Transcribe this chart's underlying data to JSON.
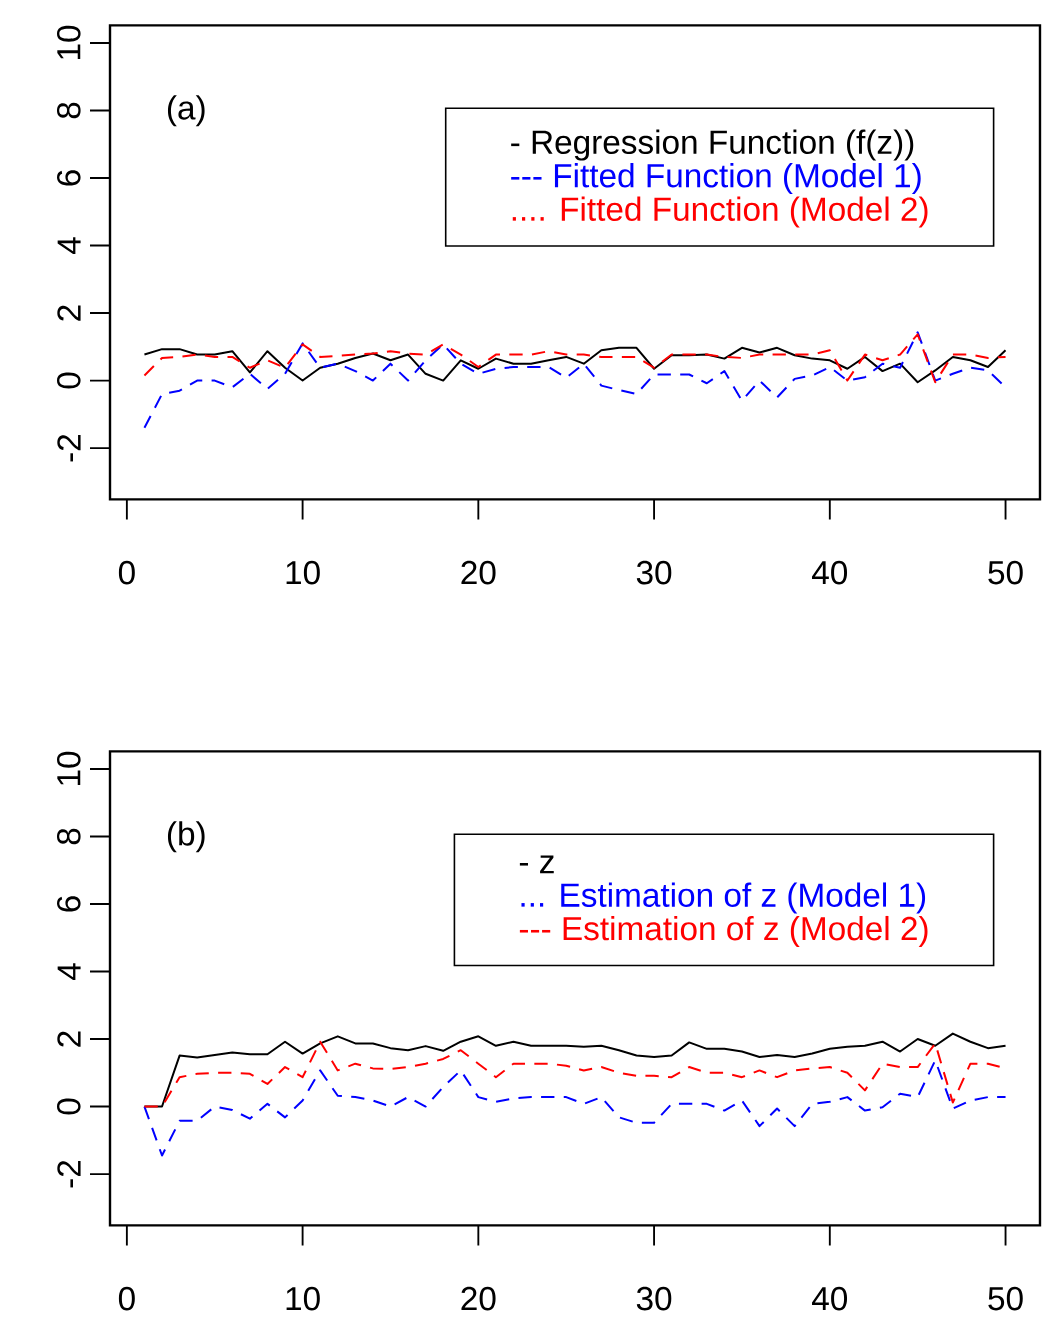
{
  "chart_data": [
    {
      "type": "line",
      "x": [
        1,
        2,
        3,
        4,
        5,
        6,
        7,
        8,
        9,
        10,
        11,
        12,
        13,
        14,
        15,
        16,
        17,
        18,
        19,
        20,
        21,
        22,
        23,
        24,
        25,
        26,
        27,
        28,
        29,
        30,
        31,
        32,
        33,
        34,
        35,
        36,
        37,
        38,
        39,
        40,
        41,
        42,
        43,
        44,
        45,
        46,
        47,
        48,
        49,
        50
      ],
      "xlim": [
        -0.96,
        51.96
      ],
      "ylim": [
        -3.52,
        10.52
      ],
      "xticks": [
        0,
        10,
        20,
        30,
        40,
        50
      ],
      "yticks": [
        -2,
        0,
        2,
        4,
        6,
        8,
        10
      ],
      "legend": "top right",
      "annotations": [
        "(a)"
      ],
      "series": [
        {
          "name": "- Regression Function (f(z))",
          "color": "#000000",
          "line_style": "solid",
          "values": [
            0.77,
            0.93,
            0.93,
            0.77,
            0.77,
            0.87,
            0.24,
            0.87,
            0.38,
            0,
            0.38,
            0.5,
            0.67,
            0.8,
            0.6,
            0.77,
            0.2,
            0,
            0.6,
            0.35,
            0.65,
            0.5,
            0.5,
            0.6,
            0.7,
            0.5,
            0.9,
            0.97,
            0.97,
            0.35,
            0.75,
            0.75,
            0.77,
            0.65,
            0.97,
            0.83,
            0.97,
            0.75,
            0.65,
            0.6,
            0.35,
            0.7,
            0.28,
            0.5,
            -0.05,
            0.3,
            0.7,
            0.6,
            0.4,
            0.9
          ]
        },
        {
          "name": "--- Fitted Function (Model 1)",
          "color": "#0000ff",
          "line_style": "dashed",
          "values": [
            -1.4,
            -0.4,
            -0.3,
            0,
            0,
            -0.2,
            0.2,
            -0.25,
            0.2,
            1.1,
            0.38,
            0.5,
            0.28,
            0,
            0.5,
            0,
            0.6,
            1.07,
            0.5,
            0.2,
            0.35,
            0.4,
            0.4,
            0.4,
            0.08,
            0.5,
            -0.15,
            -0.28,
            -0.4,
            0.18,
            0.18,
            0.18,
            -0.08,
            0.28,
            -0.6,
            0,
            -0.5,
            0.05,
            0.15,
            0.4,
            0,
            0.1,
            0.5,
            0.38,
            1.43,
            0,
            0.2,
            0.38,
            0.3,
            -0.2
          ]
        },
        {
          "name": ".... Fitted Function (Model 2)",
          "color": "#ff0000",
          "line_style": "dashed",
          "values": [
            0.15,
            0.67,
            0.7,
            0.77,
            0.7,
            0.7,
            0.38,
            0.6,
            0.38,
            1.07,
            0.7,
            0.73,
            0.77,
            0.8,
            0.87,
            0.8,
            0.77,
            1.07,
            0.77,
            0.4,
            0.77,
            0.77,
            0.77,
            0.87,
            0.77,
            0.77,
            0.7,
            0.7,
            0.7,
            0.38,
            0.77,
            0.77,
            0.77,
            0.7,
            0.67,
            0.77,
            0.77,
            0.77,
            0.77,
            0.9,
            0,
            0.77,
            0.6,
            0.77,
            1.37,
            -0.05,
            0.77,
            0.77,
            0.67,
            0.7
          ]
        }
      ]
    },
    {
      "type": "line",
      "x": [
        1,
        2,
        3,
        4,
        5,
        6,
        7,
        8,
        9,
        10,
        11,
        12,
        13,
        14,
        15,
        16,
        17,
        18,
        19,
        20,
        21,
        22,
        23,
        24,
        25,
        26,
        27,
        28,
        29,
        30,
        31,
        32,
        33,
        34,
        35,
        36,
        37,
        38,
        39,
        40,
        41,
        42,
        43,
        44,
        45,
        46,
        47,
        48,
        49,
        50
      ],
      "xlim": [
        -0.96,
        51.96
      ],
      "ylim": [
        -3.52,
        10.52
      ],
      "xticks": [
        0,
        10,
        20,
        30,
        40,
        50
      ],
      "yticks": [
        -2,
        0,
        2,
        4,
        6,
        8,
        10
      ],
      "legend": "top right",
      "annotations": [
        "(b)"
      ],
      "series": [
        {
          "name": "- z",
          "color": "#000000",
          "line_style": "solid",
          "values": [
            0,
            0,
            1.51,
            1.45,
            1.53,
            1.6,
            1.55,
            1.55,
            1.92,
            1.57,
            1.87,
            2.08,
            1.87,
            1.87,
            1.73,
            1.67,
            1.79,
            1.65,
            1.92,
            2.08,
            1.8,
            1.92,
            1.8,
            1.8,
            1.8,
            1.77,
            1.8,
            1.67,
            1.51,
            1.47,
            1.51,
            1.9,
            1.71,
            1.71,
            1.63,
            1.47,
            1.53,
            1.47,
            1.57,
            1.71,
            1.77,
            1.8,
            1.92,
            1.63,
            2.0,
            1.8,
            2.16,
            1.92,
            1.73,
            1.8
          ]
        },
        {
          "name": "... Estimation of z (Model 1)",
          "color": "#0000ff",
          "line_style": "dashed",
          "values": [
            0,
            -1.45,
            -0.42,
            -0.42,
            0,
            -0.1,
            -0.36,
            0.08,
            -0.32,
            0.18,
            1.07,
            0.32,
            0.28,
            0.18,
            0,
            0.28,
            0,
            0.58,
            1.07,
            0.28,
            0.14,
            0.24,
            0.28,
            0.28,
            0.28,
            0.08,
            0.28,
            -0.32,
            -0.48,
            -0.48,
            0.08,
            0.08,
            0.08,
            -0.12,
            0.18,
            -0.58,
            -0.06,
            -0.58,
            0.08,
            0.14,
            0.28,
            -0.12,
            -0.02,
            0.38,
            0.28,
            1.37,
            -0.06,
            0.18,
            0.28,
            0.28
          ]
        },
        {
          "name": "--- Estimation of z (Model 2)",
          "color": "#ff0000",
          "line_style": "dashed",
          "values": [
            0,
            0,
            0.87,
            0.97,
            1.0,
            1.0,
            0.97,
            0.67,
            1.17,
            0.87,
            1.92,
            1.07,
            1.27,
            1.13,
            1.11,
            1.17,
            1.27,
            1.41,
            1.67,
            1.27,
            0.87,
            1.27,
            1.27,
            1.27,
            1.21,
            1.07,
            1.17,
            1.0,
            0.91,
            0.91,
            0.87,
            1.17,
            1.0,
            1.0,
            0.87,
            1.07,
            0.87,
            1.07,
            1.13,
            1.17,
            1.0,
            0.48,
            1.27,
            1.17,
            1.17,
            1.87,
            0.12,
            1.27,
            1.27,
            1.13
          ]
        }
      ]
    }
  ]
}
